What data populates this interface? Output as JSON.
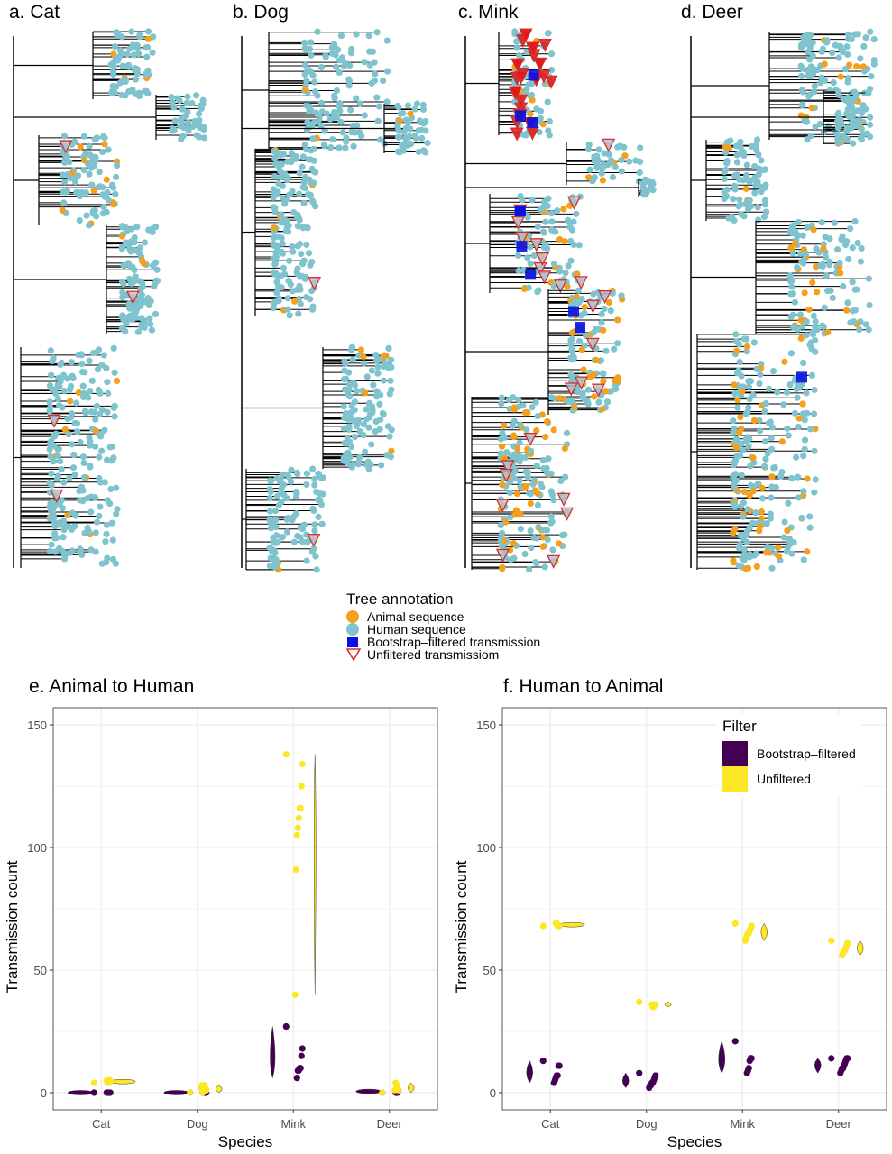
{
  "trees": [
    {
      "title": "a. Cat"
    },
    {
      "title": "b. Dog"
    },
    {
      "title": "c. Mink"
    },
    {
      "title": "d. Deer"
    }
  ],
  "tree_legend": {
    "title": "Tree annotation",
    "items": [
      {
        "label": "Animal sequence",
        "color": "#F5A01A",
        "shape": "circle"
      },
      {
        "label": "Human sequence",
        "color": "#7EC3CD",
        "shape": "circle"
      },
      {
        "label": "Bootstrap–filtered transmission",
        "color": "#0A10E0",
        "shape": "square"
      },
      {
        "label": "Unfiltered transmissiom",
        "color": "#D03030",
        "shape": "triangle-down"
      }
    ]
  },
  "filter_legend": {
    "title": "Filter",
    "items": [
      {
        "label": "Bootstrap–filtered",
        "color": "#440154"
      },
      {
        "label": "Unfiltered",
        "color": "#FDE725"
      }
    ]
  },
  "chart_data": [
    {
      "type": "violin-scatter",
      "title": "e. Animal to Human",
      "xlabel": "Species",
      "ylabel": "Transmission count",
      "categories": [
        "Cat",
        "Dog",
        "Mink",
        "Deer"
      ],
      "ylim": [
        -7,
        157
      ],
      "yticks": [
        0,
        50,
        100,
        150
      ],
      "grid": true,
      "series": [
        {
          "name": "Bootstrap-filtered",
          "color": "#440154",
          "values": {
            "Cat": [
              0,
              0,
              0,
              0,
              0,
              0
            ],
            "Dog": [
              0,
              0,
              0,
              0,
              0,
              0
            ],
            "Mink": [
              27,
              18,
              15,
              10,
              10,
              9,
              9,
              6
            ],
            "Deer": [
              0,
              1,
              0,
              0,
              0
            ]
          }
        },
        {
          "name": "Unfiltered",
          "color": "#FDE725",
          "values": {
            "Cat": [
              4,
              5,
              4,
              5,
              4,
              5
            ],
            "Dog": [
              0,
              1,
              2,
              3,
              1,
              0,
              3,
              2
            ],
            "Mink": [
              138,
              134,
              125,
              116,
              116,
              112,
              108,
              105,
              91,
              40
            ],
            "Deer": [
              0,
              1,
              2,
              3,
              4,
              1
            ]
          }
        }
      ]
    },
    {
      "type": "violin-scatter",
      "title": "f. Human to Animal",
      "xlabel": "Species",
      "ylabel": "Transmission count",
      "categories": [
        "Cat",
        "Dog",
        "Mink",
        "Deer"
      ],
      "ylim": [
        -7,
        157
      ],
      "yticks": [
        0,
        50,
        100,
        150
      ],
      "grid": true,
      "legend_position": "top-right",
      "series": [
        {
          "name": "Bootstrap-filtered",
          "color": "#440154",
          "values": {
            "Cat": [
              13,
              11,
              11,
              7,
              7,
              6,
              5,
              4
            ],
            "Dog": [
              8,
              7,
              6,
              5,
              4,
              4,
              3,
              3,
              2
            ],
            "Mink": [
              21,
              14,
              14,
              13,
              10,
              9,
              8
            ],
            "Deer": [
              14,
              14,
              14,
              13,
              12,
              11,
              10,
              10,
              9,
              8
            ]
          }
        },
        {
          "name": "Unfiltered",
          "color": "#FDE725",
          "values": {
            "Cat": [
              68,
              68,
              68,
              68,
              69,
              69
            ],
            "Dog": [
              37,
              36,
              36,
              35,
              35,
              36
            ],
            "Mink": [
              69,
              68,
              67,
              66,
              65,
              65,
              64,
              63,
              62
            ],
            "Deer": [
              62,
              61,
              60,
              59,
              58,
              58,
              57,
              56
            ]
          }
        }
      ]
    }
  ]
}
